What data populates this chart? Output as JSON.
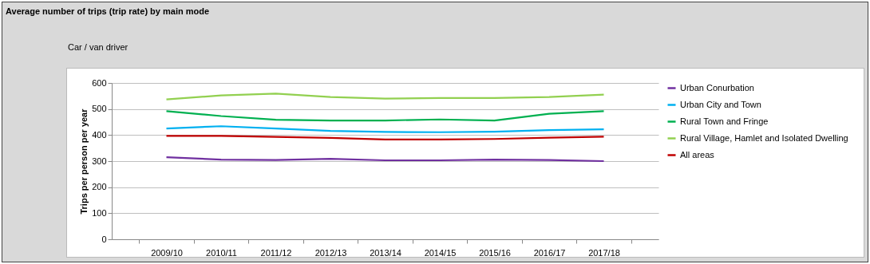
{
  "chart_data": {
    "type": "line",
    "title": "Average number of trips (trip rate) by main mode",
    "subtitle": "Car / van driver",
    "ylabel": "Trips per person per year",
    "categories": [
      "2009/10",
      "2010/11",
      "2011/12",
      "2012/13",
      "2013/14",
      "2014/15",
      "2015/16",
      "2016/17",
      "2017/18"
    ],
    "series": [
      {
        "name": "Urban Conurbation",
        "color": "#7030a0",
        "values": [
          315,
          306,
          304,
          309,
          303,
          303,
          306,
          304,
          300
        ]
      },
      {
        "name": "Urban City and Town",
        "color": "#00b0f0",
        "values": [
          425,
          434,
          425,
          416,
          412,
          411,
          413,
          419,
          422
        ]
      },
      {
        "name": "Rural Town and Fringe",
        "color": "#00b050",
        "values": [
          492,
          473,
          459,
          456,
          456,
          460,
          456,
          482,
          492
        ]
      },
      {
        "name": "Rural Village, Hamlet and Isolated Dwelling",
        "color": "#92d050",
        "values": [
          537,
          552,
          559,
          546,
          540,
          542,
          542,
          546,
          555
        ]
      },
      {
        "name": "All areas",
        "color": "#c00000",
        "values": [
          397,
          397,
          393,
          389,
          383,
          383,
          385,
          390,
          394
        ]
      }
    ],
    "ylim": [
      0,
      600
    ],
    "yticks": [
      0,
      100,
      200,
      300,
      400,
      500,
      600
    ],
    "grid": "y",
    "legend": "right",
    "marker": "none",
    "line_style": "solid"
  }
}
